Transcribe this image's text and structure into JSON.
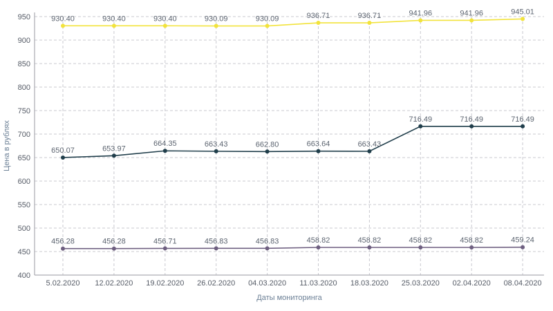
{
  "chart_data": {
    "type": "line",
    "title": "",
    "xlabel": "Даты мониторинга",
    "ylabel": "Цена в рублях",
    "x": [
      "5.02.2020",
      "12.02.2020",
      "19.02.2020",
      "26.02.2020",
      "04.03.2020",
      "11.03.2020",
      "18.03.2020",
      "25.03.2020",
      "02.04.2020",
      "08.04.2020"
    ],
    "ylim": [
      400,
      950
    ],
    "yticks": [
      400,
      450,
      500,
      550,
      600,
      650,
      700,
      750,
      800,
      850,
      900,
      950
    ],
    "grid": true,
    "legend": "none",
    "series": [
      {
        "color": "#f2e33b",
        "values": [
          930.4,
          930.4,
          930.4,
          930.09,
          930.09,
          936.71,
          936.71,
          941.96,
          941.96,
          945.01
        ],
        "labels": [
          "930.40",
          "930.40",
          "930.40",
          "930.09",
          "930.09",
          "936.71",
          "936.71",
          "941.96",
          "941.96",
          "945.01"
        ]
      },
      {
        "color": "#1f3d4a",
        "values": [
          650.07,
          653.97,
          664.35,
          663.43,
          662.8,
          663.64,
          663.43,
          716.49,
          716.49,
          716.49
        ],
        "labels": [
          "650.07",
          "653.97",
          "664.35",
          "663.43",
          "662.80",
          "663.64",
          "663.43",
          "716.49",
          "716.49",
          "716.49"
        ]
      },
      {
        "color": "#6e5f80",
        "values": [
          456.28,
          456.28,
          456.71,
          456.83,
          456.83,
          458.82,
          458.82,
          458.82,
          458.82,
          459.24
        ],
        "labels": [
          "456.28",
          "456.28",
          "456.71",
          "456.83",
          "456.83",
          "458.82",
          "458.82",
          "458.82",
          "458.82",
          "459.24"
        ]
      }
    ]
  }
}
